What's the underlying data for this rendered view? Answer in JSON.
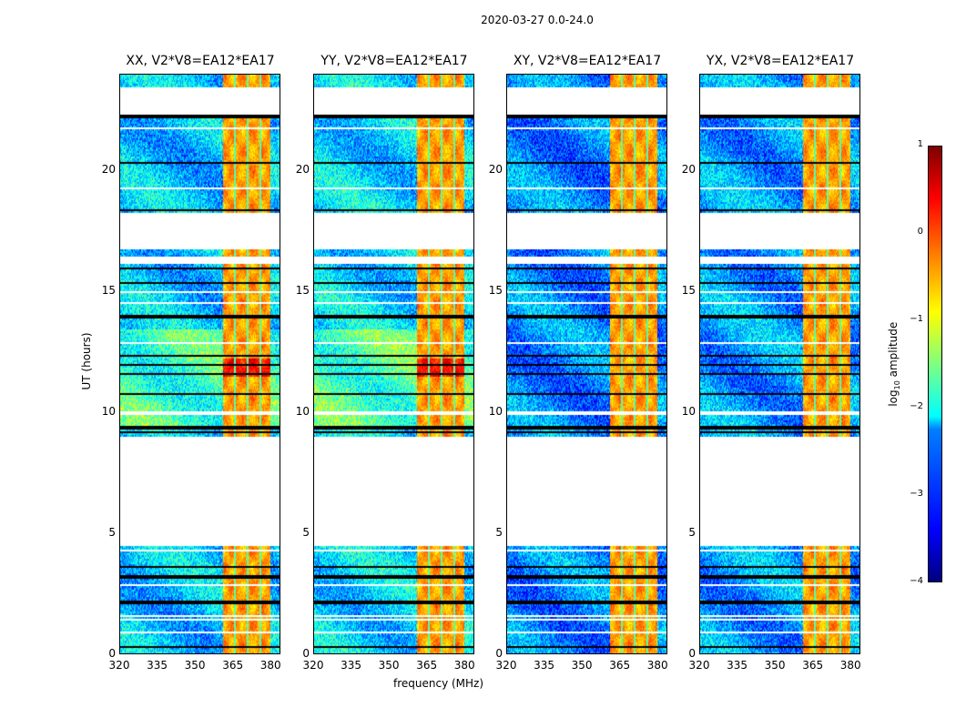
{
  "chart_data": {
    "type": "heatmap",
    "title": "2020-03-27 0.0-24.0",
    "xlabel": "frequency (MHz)",
    "ylabel": "UT (hours)",
    "xlim": [
      320,
      384
    ],
    "ylim": [
      0,
      24
    ],
    "xticks": [
      "320",
      "335",
      "350",
      "365",
      "380"
    ],
    "yticks": [
      "0",
      "5",
      "10",
      "15",
      "20"
    ],
    "panels": [
      {
        "title": "XX, V2*V8=EA12*EA17",
        "background_log_amp": -2.4
      },
      {
        "title": "YY, V2*V8=EA12*EA17",
        "background_log_amp": -2.3
      },
      {
        "title": "XY, V2*V8=EA12*EA17",
        "background_log_amp": -2.7
      },
      {
        "title": "YX, V2*V8=EA12*EA17",
        "background_log_amp": -2.6
      }
    ],
    "rfi_band_mhz": [
      361,
      380
    ],
    "rfi_log_amp": -0.4,
    "data_gaps_hours": [
      [
        4.5,
        9.0
      ],
      [
        16.2,
        16.5
      ],
      [
        16.8,
        18.3
      ],
      [
        22.4,
        23.5
      ]
    ],
    "colorbar": {
      "label": "log10 amplitude",
      "label_main": "log",
      "label_sub": "10",
      "label_rest": " amplitude",
      "ticks": [
        "1",
        "0",
        "−1",
        "−2",
        "−3",
        "−4"
      ],
      "range": [
        -4,
        1
      ],
      "colormap": "jet"
    }
  }
}
